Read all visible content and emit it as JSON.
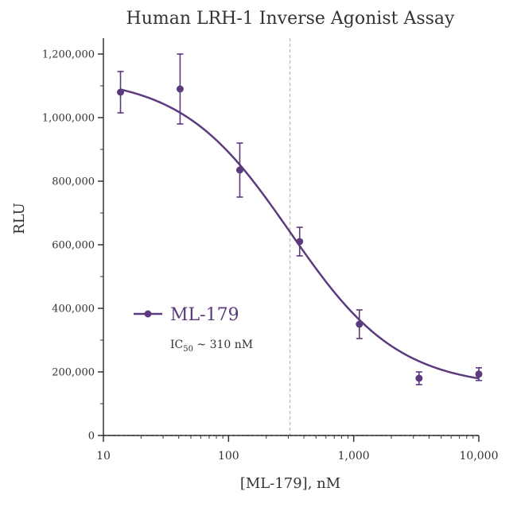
{
  "chart_data": {
    "type": "scatter",
    "title": "Human LRH-1 Inverse Agonist Assay",
    "xlabel": "[ML-179], nM",
    "ylabel": "RLU",
    "x_scale": "log",
    "xlim": [
      10,
      10000
    ],
    "ylim": [
      0,
      1250000
    ],
    "x_ticks": [
      10,
      100,
      1000,
      10000
    ],
    "x_tick_labels": [
      "10",
      "100",
      "1,000",
      "10,000"
    ],
    "y_ticks": [
      0,
      200000,
      400000,
      600000,
      800000,
      1000000,
      1200000
    ],
    "y_tick_labels": [
      "0",
      "200,000",
      "400,000",
      "600,000",
      "800,000",
      "1,000,000",
      "1,200,000"
    ],
    "grid": false,
    "legend_position": "lower-left",
    "series": [
      {
        "name": "ML-179",
        "color": "#5b3a7e",
        "x": [
          13.7,
          41,
          123,
          370,
          1110,
          3330,
          10000
        ],
        "y": [
          1080000,
          1090000,
          835000,
          610000,
          350000,
          180000,
          193000
        ],
        "error": [
          65000,
          110000,
          85000,
          45000,
          45000,
          20000,
          20000
        ]
      }
    ],
    "fit_curve": {
      "model": "four-parameter logistic",
      "top": 1130000,
      "bottom": 150000,
      "ic50": 310,
      "hill_slope": 1.0
    },
    "reference_line": {
      "x": 310,
      "style": "dashed"
    },
    "baseline": {
      "y": 0,
      "style": "dashed"
    },
    "annotation": {
      "text_main": "IC",
      "text_sub": "50",
      "text_tail": " ~ 310 nM"
    }
  }
}
